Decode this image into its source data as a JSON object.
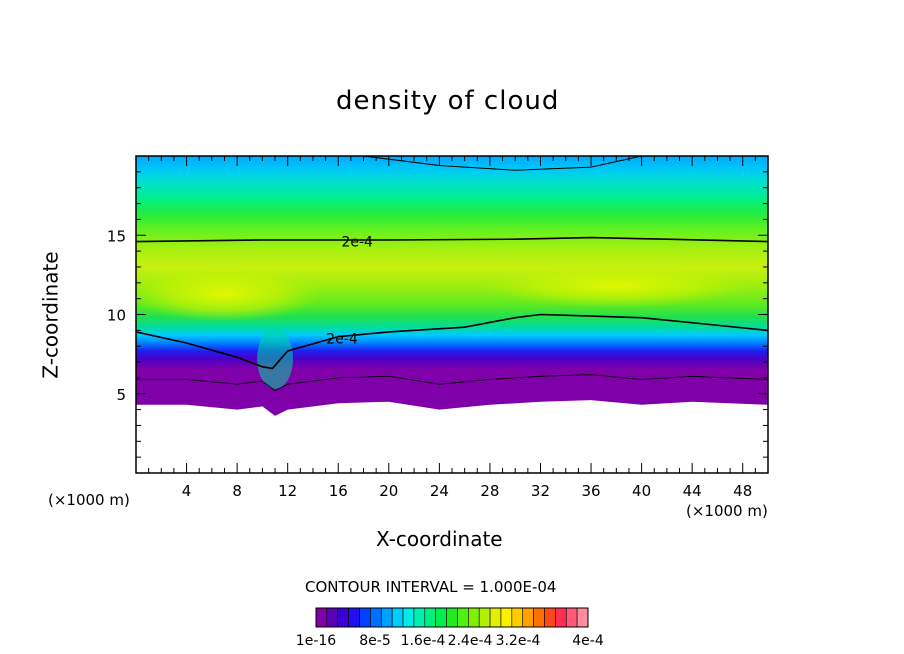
{
  "chart_data": {
    "type": "heatmap",
    "title": "density of cloud",
    "xlabel": "X-coordinate",
    "ylabel": "Z-coordinate",
    "x_unit_label": "(×1000 m)",
    "y_unit_label": "(×1000 m)",
    "xlim": [
      0,
      50
    ],
    "ylim": [
      0,
      20
    ],
    "x_ticks": [
      4,
      8,
      12,
      16,
      20,
      24,
      28,
      32,
      36,
      40,
      44,
      48
    ],
    "y_ticks": [
      5,
      10,
      15
    ],
    "contour_interval_label": "CONTOUR INTERVAL = 1.000E-04",
    "contour_labels": [
      {
        "text": "2e-4",
        "x": 17.5,
        "z": 14.6
      },
      {
        "text": "2e-4",
        "x": 16.3,
        "z": 8.5
      }
    ],
    "contour_2e4_upper": {
      "x": [
        0,
        10,
        20,
        30,
        36,
        42,
        50
      ],
      "z": [
        14.6,
        14.7,
        14.7,
        14.75,
        14.85,
        14.75,
        14.6
      ]
    },
    "contour_2e4_lower": {
      "x": [
        0,
        4,
        8,
        10,
        10.8,
        12,
        16,
        20,
        26,
        30,
        32,
        36,
        40,
        45,
        50
      ],
      "z": [
        8.9,
        8.2,
        7.3,
        6.7,
        6.6,
        7.7,
        8.6,
        8.9,
        9.2,
        9.8,
        10.0,
        9.9,
        9.8,
        9.4,
        9.0
      ]
    },
    "contour_top": {
      "x": [
        18,
        24,
        30,
        36,
        40
      ],
      "z": [
        20.0,
        19.4,
        19.1,
        19.3,
        20.0
      ]
    },
    "cloud_base_z": {
      "x": [
        0,
        4,
        8,
        10,
        11,
        12,
        16,
        20,
        24,
        28,
        32,
        36,
        40,
        44,
        50
      ],
      "z": [
        4.3,
        4.3,
        4.0,
        4.2,
        3.6,
        4.0,
        4.4,
        4.5,
        4.0,
        4.3,
        4.5,
        4.6,
        4.3,
        4.5,
        4.3
      ]
    },
    "colorbar": {
      "colors": [
        "#7f00a8",
        "#5a00b8",
        "#3a00d6",
        "#1e10f0",
        "#0040ff",
        "#0070ff",
        "#00a0ff",
        "#00ccff",
        "#00ece8",
        "#00f0b0",
        "#00f080",
        "#00ee50",
        "#20ea20",
        "#50f010",
        "#80f000",
        "#b0f000",
        "#e0f000",
        "#ffee00",
        "#ffcc00",
        "#ffa000",
        "#ff7000",
        "#ff4818",
        "#ff3050",
        "#ff5a78",
        "#ff8ca0"
      ],
      "labels": [
        "1e-16",
        "8e-5",
        "1.6e-4",
        "2.4e-4",
        "3.2e-4",
        "4e-4"
      ]
    }
  }
}
